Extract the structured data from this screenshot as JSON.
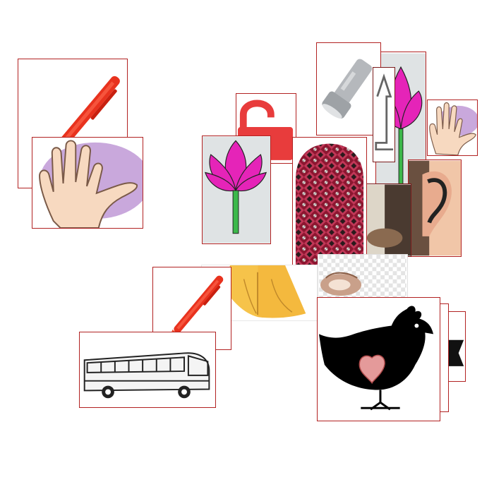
{
  "canvas": {
    "background": "#ffffff",
    "card_border_color": "#b22222"
  },
  "cards": [
    {
      "id": "pen-1",
      "icon": "pen-icon"
    },
    {
      "id": "hand-1",
      "icon": "hand-icon"
    },
    {
      "id": "padlock",
      "icon": "open-padlock-icon"
    },
    {
      "id": "lotus-1",
      "icon": "lotus-icon"
    },
    {
      "id": "flashlight",
      "icon": "flashlight-icon"
    },
    {
      "id": "lotus-2",
      "icon": "lotus-icon"
    },
    {
      "id": "hand-2",
      "icon": "hand-icon"
    },
    {
      "id": "knitted-cap",
      "icon": "knitted-cap-icon"
    },
    {
      "id": "ear",
      "icon": "ear-icon"
    },
    {
      "id": "shells",
      "icon": "shell-icon"
    },
    {
      "id": "praying-hands",
      "icon": "praying-hands-icon"
    },
    {
      "id": "pen-2",
      "icon": "pen-icon"
    },
    {
      "id": "bus",
      "icon": "bus-icon"
    },
    {
      "id": "hen",
      "icon": "hen-icon"
    }
  ]
}
